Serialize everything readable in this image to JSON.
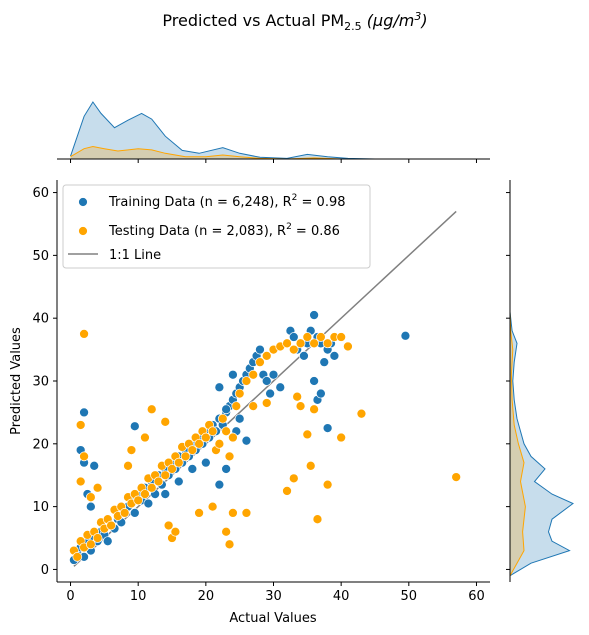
{
  "chart_data": {
    "type": "scatter",
    "title": "Predicted vs Actual PM",
    "title_subscript": "2.5",
    "title_units": "(μg/m",
    "title_units_sup": "3",
    "title_units_close": ")",
    "xlabel": "Actual Values",
    "ylabel": "Predicted Values",
    "xlim": [
      -2,
      62
    ],
    "ylim": [
      -2,
      62
    ],
    "xticks": [
      0,
      10,
      20,
      30,
      40,
      50,
      60
    ],
    "yticks": [
      0,
      10,
      20,
      30,
      40,
      50,
      60
    ],
    "grid": false,
    "legend_position": "top-left",
    "legend": {
      "training_prefix": "Training Data (n = 6,248), R",
      "training_sup": "2",
      "training_suffix": " = 0.98",
      "testing_prefix": "Testing Data (n = 2,083), R",
      "testing_sup": "2",
      "testing_suffix": " = 0.86",
      "line_label": "1:1 Line"
    },
    "colors": {
      "training": "#1f77b4",
      "testing": "#ffa500",
      "line": "#808080"
    },
    "line_1to1": {
      "x": [
        0.5,
        57
      ],
      "y": [
        0.5,
        57
      ]
    },
    "series": [
      {
        "name": "Training Data (n = 6,248), R² = 0.98",
        "points": [
          [
            0.5,
            1.5
          ],
          [
            1,
            2.5
          ],
          [
            1.5,
            3.5
          ],
          [
            2,
            2
          ],
          [
            2.5,
            4.5
          ],
          [
            3,
            3
          ],
          [
            3.5,
            5
          ],
          [
            4,
            4.5
          ],
          [
            4.5,
            6
          ],
          [
            5,
            5.5
          ],
          [
            5.5,
            4.5
          ],
          [
            6,
            7
          ],
          [
            6.5,
            6.5
          ],
          [
            7,
            8
          ],
          [
            7.5,
            7.5
          ],
          [
            8,
            9
          ],
          [
            8.5,
            10
          ],
          [
            9,
            11
          ],
          [
            9.5,
            9
          ],
          [
            10,
            12
          ],
          [
            10.5,
            11
          ],
          [
            11,
            13
          ],
          [
            11.5,
            10.5
          ],
          [
            12,
            14
          ],
          [
            12.5,
            12
          ],
          [
            13,
            15
          ],
          [
            13.5,
            13.5
          ],
          [
            14,
            16
          ],
          [
            14.5,
            15
          ],
          [
            15,
            17
          ],
          [
            15.5,
            16
          ],
          [
            16,
            18
          ],
          [
            16.5,
            17
          ],
          [
            17,
            19
          ],
          [
            17.5,
            18
          ],
          [
            18,
            20
          ],
          [
            18.5,
            19
          ],
          [
            19,
            21
          ],
          [
            19.5,
            20
          ],
          [
            20,
            22
          ],
          [
            20.5,
            21
          ],
          [
            21,
            23
          ],
          [
            21.5,
            22
          ],
          [
            22,
            24
          ],
          [
            22.5,
            23
          ],
          [
            23,
            25
          ],
          [
            23.5,
            26
          ],
          [
            24,
            27
          ],
          [
            24.5,
            28
          ],
          [
            25,
            29
          ],
          [
            25.5,
            30
          ],
          [
            26,
            31
          ],
          [
            26.5,
            32
          ],
          [
            27,
            33
          ],
          [
            27.5,
            34
          ],
          [
            28,
            35
          ],
          [
            28.5,
            31
          ],
          [
            29,
            30
          ],
          [
            29.5,
            28
          ],
          [
            30,
            31
          ],
          [
            31,
            29
          ],
          [
            32,
            36
          ],
          [
            32.5,
            38
          ],
          [
            33,
            37
          ],
          [
            33.5,
            35
          ],
          [
            34,
            36
          ],
          [
            34.5,
            34
          ],
          [
            35,
            36
          ],
          [
            35.5,
            38
          ],
          [
            36,
            40.5
          ],
          [
            36.5,
            37
          ],
          [
            37,
            36
          ],
          [
            37.5,
            33
          ],
          [
            38,
            35
          ],
          [
            38.5,
            36
          ],
          [
            39,
            34
          ],
          [
            49.5,
            37.2
          ],
          [
            2,
            25
          ],
          [
            1.5,
            19
          ],
          [
            2,
            17
          ],
          [
            2.5,
            12
          ],
          [
            3,
            10
          ],
          [
            3.5,
            16.5
          ],
          [
            9.5,
            22.8
          ],
          [
            22,
            29
          ],
          [
            23,
            25.5
          ],
          [
            24,
            31
          ],
          [
            25,
            24
          ],
          [
            26,
            20.5
          ],
          [
            24.5,
            22
          ],
          [
            36,
            30
          ],
          [
            36.5,
            27
          ],
          [
            37,
            28
          ],
          [
            38,
            22.5
          ],
          [
            22,
            13.5
          ],
          [
            23,
            16
          ],
          [
            20,
            17
          ],
          [
            18,
            16
          ],
          [
            16,
            14
          ],
          [
            14,
            12
          ]
        ]
      },
      {
        "name": "Testing Data (n = 2,083), R² = 0.86",
        "points": [
          [
            0.5,
            3
          ],
          [
            1,
            2
          ],
          [
            1.5,
            4.5
          ],
          [
            2,
            3.5
          ],
          [
            2.5,
            5.5
          ],
          [
            3,
            4
          ],
          [
            3.5,
            6
          ],
          [
            4,
            5
          ],
          [
            4.5,
            7.5
          ],
          [
            5,
            6.5
          ],
          [
            5.5,
            8
          ],
          [
            6,
            7
          ],
          [
            6.5,
            9.5
          ],
          [
            7,
            8.5
          ],
          [
            7.5,
            10
          ],
          [
            8,
            9
          ],
          [
            8.5,
            11.5
          ],
          [
            9,
            10.5
          ],
          [
            9.5,
            12
          ],
          [
            10,
            11
          ],
          [
            10.5,
            13
          ],
          [
            11,
            12
          ],
          [
            11.5,
            14.5
          ],
          [
            12,
            13
          ],
          [
            12.5,
            15
          ],
          [
            13,
            14
          ],
          [
            13.5,
            16.5
          ],
          [
            14,
            15
          ],
          [
            14.5,
            17
          ],
          [
            15,
            16
          ],
          [
            15.5,
            18
          ],
          [
            16,
            17
          ],
          [
            16.5,
            19.5
          ],
          [
            17,
            18
          ],
          [
            17.5,
            20
          ],
          [
            18,
            19
          ],
          [
            18.5,
            21
          ],
          [
            19,
            20
          ],
          [
            19.5,
            22
          ],
          [
            20,
            21
          ],
          [
            20.5,
            23
          ],
          [
            21,
            22
          ],
          [
            21.5,
            19
          ],
          [
            22,
            20
          ],
          [
            22.5,
            24
          ],
          [
            23,
            22
          ],
          [
            23.5,
            18
          ],
          [
            24,
            21
          ],
          [
            24.5,
            26
          ],
          [
            25,
            28
          ],
          [
            26,
            30
          ],
          [
            27,
            31
          ],
          [
            28,
            33
          ],
          [
            29,
            34
          ],
          [
            30,
            35
          ],
          [
            31,
            35.5
          ],
          [
            32,
            36
          ],
          [
            33,
            35
          ],
          [
            34,
            36
          ],
          [
            35,
            37
          ],
          [
            36,
            36
          ],
          [
            37,
            37
          ],
          [
            38,
            36
          ],
          [
            39,
            37
          ],
          [
            40,
            37
          ],
          [
            41,
            35.5
          ],
          [
            2,
            37.5
          ],
          [
            1.5,
            23
          ],
          [
            2,
            18
          ],
          [
            1.5,
            14
          ],
          [
            3,
            11.5
          ],
          [
            4,
            13
          ],
          [
            8.5,
            16.5
          ],
          [
            9,
            19
          ],
          [
            11,
            21
          ],
          [
            12,
            25.5
          ],
          [
            14,
            23.5
          ],
          [
            23.5,
            4
          ],
          [
            24,
            9
          ],
          [
            23,
            6
          ],
          [
            26,
            9
          ],
          [
            32,
            12.5
          ],
          [
            33,
            14.5
          ],
          [
            34,
            26
          ],
          [
            35,
            21.5
          ],
          [
            36,
            25.5
          ],
          [
            36.5,
            8
          ],
          [
            38,
            13.5
          ],
          [
            40,
            21
          ],
          [
            43,
            24.8
          ],
          [
            57,
            14.7
          ],
          [
            35.5,
            16.5
          ],
          [
            33.5,
            27.5
          ],
          [
            29,
            26.5
          ],
          [
            27,
            26
          ],
          [
            14.5,
            7
          ],
          [
            15,
            5
          ],
          [
            15.5,
            6
          ],
          [
            19,
            9
          ],
          [
            21,
            10
          ]
        ]
      }
    ],
    "marginal_x": {
      "training_density": [
        [
          0,
          0.005
        ],
        [
          2,
          0.075
        ],
        [
          3.3,
          0.1
        ],
        [
          4.5,
          0.08
        ],
        [
          6.5,
          0.055
        ],
        [
          8.5,
          0.068
        ],
        [
          10.5,
          0.08
        ],
        [
          12,
          0.07
        ],
        [
          14,
          0.04
        ],
        [
          16.5,
          0.015
        ],
        [
          19,
          0.01
        ],
        [
          22.5,
          0.02
        ],
        [
          25,
          0.01
        ],
        [
          28,
          0.003
        ],
        [
          32,
          0.001
        ],
        [
          35,
          0.008
        ],
        [
          38,
          0.004
        ],
        [
          41,
          0.001
        ],
        [
          45,
          0.0
        ]
      ],
      "testing_density": [
        [
          0,
          0.004
        ],
        [
          2,
          0.018
        ],
        [
          3.3,
          0.022
        ],
        [
          5,
          0.018
        ],
        [
          7,
          0.014
        ],
        [
          10,
          0.018
        ],
        [
          12,
          0.016
        ],
        [
          14,
          0.01
        ],
        [
          17,
          0.004
        ],
        [
          20,
          0.004
        ],
        [
          22.5,
          0.007
        ],
        [
          25,
          0.004
        ],
        [
          28,
          0.001
        ],
        [
          32,
          0.0
        ],
        [
          36,
          0.002
        ],
        [
          40,
          0.0
        ]
      ]
    },
    "marginal_y": {
      "training_density": [
        [
          -1,
          0
        ],
        [
          1,
          0.03
        ],
        [
          3,
          0.085
        ],
        [
          4.5,
          0.06
        ],
        [
          6,
          0.055
        ],
        [
          8,
          0.06
        ],
        [
          10.5,
          0.09
        ],
        [
          12,
          0.06
        ],
        [
          14,
          0.035
        ],
        [
          16,
          0.05
        ],
        [
          18,
          0.03
        ],
        [
          20,
          0.02
        ],
        [
          22,
          0.015
        ],
        [
          24,
          0.01
        ],
        [
          27,
          0.006
        ],
        [
          30,
          0.004
        ],
        [
          33,
          0.006
        ],
        [
          36,
          0.01
        ],
        [
          38,
          0.003
        ],
        [
          41,
          0.0
        ]
      ],
      "testing_density": [
        [
          -1,
          0
        ],
        [
          1,
          0.01
        ],
        [
          3,
          0.02
        ],
        [
          6,
          0.018
        ],
        [
          10,
          0.022
        ],
        [
          14,
          0.015
        ],
        [
          17,
          0.02
        ],
        [
          20,
          0.012
        ],
        [
          23,
          0.006
        ],
        [
          27,
          0.003
        ],
        [
          31,
          0.002
        ],
        [
          35,
          0.004
        ],
        [
          38,
          0.001
        ],
        [
          41,
          0.0
        ]
      ]
    }
  }
}
